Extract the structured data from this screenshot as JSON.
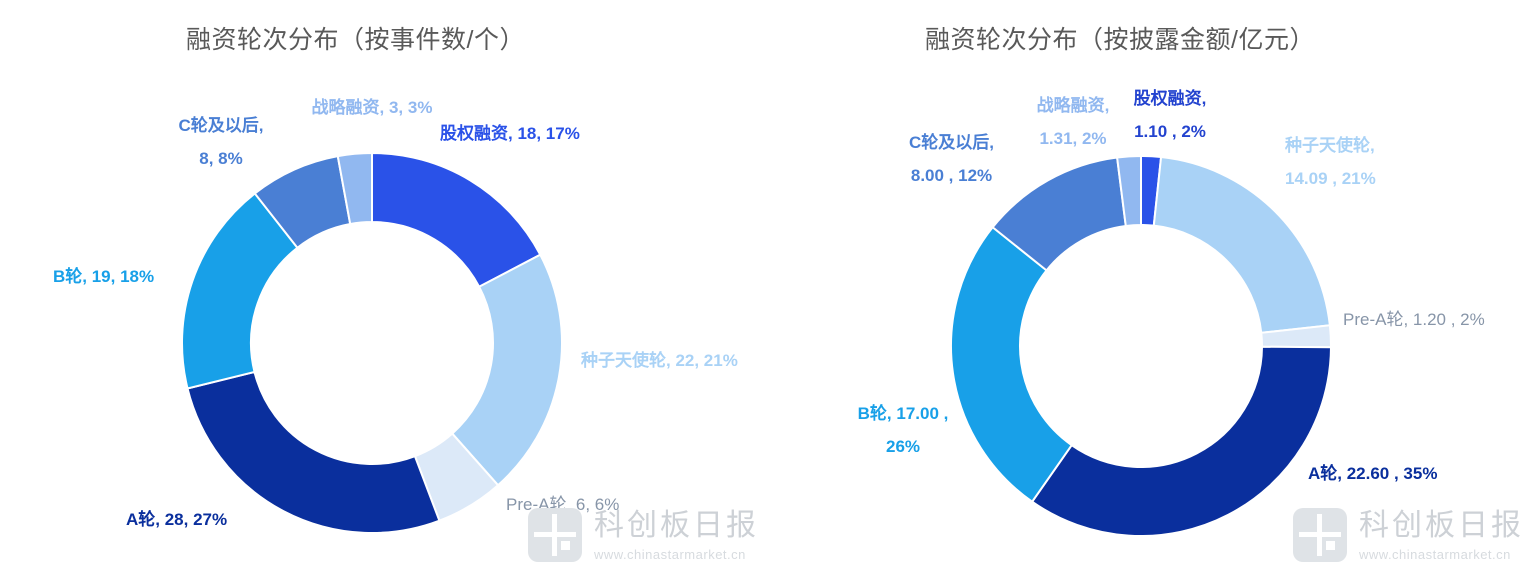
{
  "watermark": {
    "brand": "科创板日报",
    "url": "www.chinastarmarket.cn"
  },
  "chart_data": [
    {
      "type": "pie",
      "donut": true,
      "title": "融资轮次分布（按事件数/个）",
      "unit": "个",
      "legend_position": "none",
      "segments": [
        {
          "label": "股权融资",
          "value": 18,
          "percent": "17%",
          "color": "#2a52e8",
          "label_color": "#2a52e8",
          "label_bold": true,
          "label_lines": [
            "股权融资, 18, 17%"
          ]
        },
        {
          "label": "种子天使轮",
          "value": 22,
          "percent": "21%",
          "color": "#a9d2f6",
          "label_color": "#a9d2f6",
          "label_bold": true,
          "label_lines": [
            "种子天使轮, 22, 21%"
          ]
        },
        {
          "label": "Pre-A轮",
          "value": 6,
          "percent": "6%",
          "color": "#dce9f8",
          "label_color": "#8795a8",
          "label_bold": false,
          "label_lines": [
            "Pre-A轮, 6, 6%"
          ]
        },
        {
          "label": "A轮",
          "value": 28,
          "percent": "27%",
          "color": "#0a2f9d",
          "label_color": "#0a2f9d",
          "label_bold": true,
          "label_lines": [
            "A轮, 28, 27%"
          ]
        },
        {
          "label": "B轮",
          "value": 19,
          "percent": "18%",
          "color": "#18a0e8",
          "label_color": "#18a0e8",
          "label_bold": true,
          "label_lines": [
            "B轮, 19, 18%"
          ]
        },
        {
          "label": "C轮及以后",
          "value": 8,
          "percent": "8%",
          "color": "#4a7fd4",
          "label_color": "#4a7fd4",
          "label_bold": true,
          "label_lines": [
            "C轮及以后,",
            "8, 8%"
          ]
        },
        {
          "label": "战略融资",
          "value": 3,
          "percent": "3%",
          "color": "#91b8f0",
          "label_color": "#91b8f0",
          "label_bold": true,
          "label_lines": [
            "战略融资, 3, 3%"
          ]
        }
      ]
    },
    {
      "type": "pie",
      "donut": true,
      "title": "融资轮次分布（按披露金额/亿元）",
      "unit": "亿元",
      "legend_position": "none",
      "segments": [
        {
          "label": "股权融资",
          "value": 1.1,
          "percent": "2%",
          "color": "#2a52e8",
          "label_color": "#2343cf",
          "label_bold": true,
          "label_lines": [
            "股权融资,",
            "1.10 , 2%"
          ]
        },
        {
          "label": "种子天使轮",
          "value": 14.09,
          "percent": "21%",
          "color": "#a9d2f6",
          "label_color": "#a9d2f6",
          "label_bold": true,
          "label_lines": [
            "种子天使轮,",
            "14.09 , 21%"
          ]
        },
        {
          "label": "Pre-A轮",
          "value": 1.2,
          "percent": "2%",
          "color": "#dce9f8",
          "label_color": "#8795a8",
          "label_bold": false,
          "label_lines": [
            "Pre-A轮, 1.20 , 2%"
          ]
        },
        {
          "label": "A轮",
          "value": 22.6,
          "percent": "35%",
          "color": "#0a2f9d",
          "label_color": "#0a2f9d",
          "label_bold": true,
          "label_lines": [
            "A轮, 22.60 , 35%"
          ]
        },
        {
          "label": "B轮",
          "value": 17.0,
          "percent": "26%",
          "color": "#18a0e8",
          "label_color": "#18a0e8",
          "label_bold": true,
          "label_lines": [
            "B轮, 17.00 ,",
            "26%"
          ]
        },
        {
          "label": "C轮及以后",
          "value": 8.0,
          "percent": "12%",
          "color": "#4a7fd4",
          "label_color": "#4a7fd4",
          "label_bold": true,
          "label_lines": [
            "C轮及以后,",
            "8.00 , 12%"
          ]
        },
        {
          "label": "战略融资",
          "value": 1.31,
          "percent": "2%",
          "color": "#91b8f0",
          "label_color": "#91b8f0",
          "label_bold": true,
          "label_lines": [
            "战略融资,",
            "1.31, 2%"
          ]
        }
      ]
    }
  ]
}
